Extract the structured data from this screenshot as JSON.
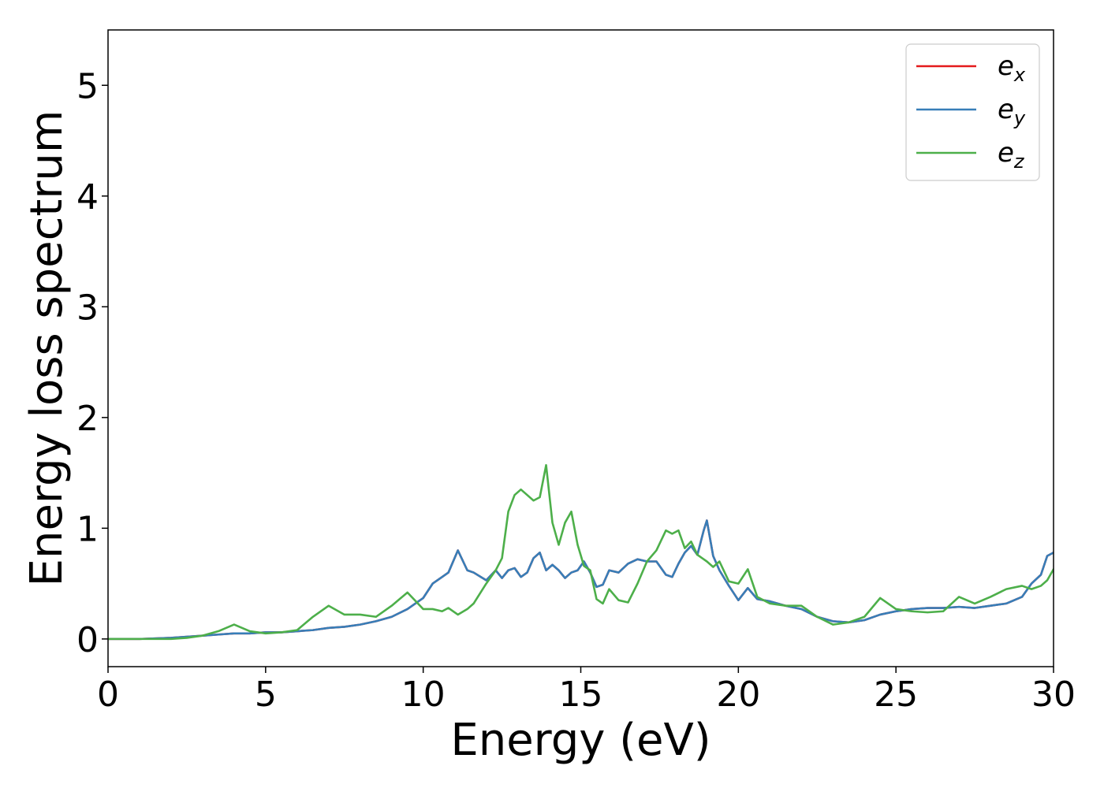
{
  "chart_data": {
    "type": "line",
    "title": "",
    "xlabel": "Energy (eV)",
    "ylabel": "Energy loss spectrum",
    "xlim": [
      0,
      30
    ],
    "ylim": [
      -0.25,
      5.5
    ],
    "xticks": [
      0,
      5,
      10,
      15,
      20,
      25,
      30
    ],
    "yticks": [
      0,
      1,
      2,
      3,
      4,
      5
    ],
    "grid": false,
    "legend": {
      "position": "top-right",
      "entries": [
        {
          "base": "e",
          "sub": "x",
          "color": "#e41a1c"
        },
        {
          "base": "e",
          "sub": "y",
          "color": "#377eb8"
        },
        {
          "base": "e",
          "sub": "z",
          "color": "#4daf4a"
        }
      ]
    },
    "x": [
      0,
      1,
      2,
      2.5,
      3,
      3.5,
      4,
      4.5,
      5,
      5.5,
      6,
      6.5,
      7,
      7.5,
      8,
      8.5,
      9,
      9.5,
      10,
      10.3,
      10.6,
      10.8,
      11.1,
      11.4,
      11.6,
      12,
      12.3,
      12.5,
      12.7,
      12.9,
      13.1,
      13.3,
      13.5,
      13.7,
      13.9,
      14.1,
      14.3,
      14.5,
      14.7,
      14.9,
      15.1,
      15.3,
      15.5,
      15.7,
      15.9,
      16.2,
      16.5,
      16.8,
      17.1,
      17.4,
      17.7,
      17.9,
      18.1,
      18.3,
      18.5,
      18.7,
      18.9,
      19.0,
      19.2,
      19.4,
      19.7,
      20,
      20.3,
      20.6,
      21,
      21.5,
      22,
      22.5,
      23,
      23.5,
      24,
      24.5,
      25,
      25.5,
      26,
      26.5,
      27,
      27.5,
      28,
      28.5,
      29,
      29.3,
      29.6,
      29.8,
      30
    ],
    "series": [
      {
        "name": "e_x",
        "color": "#e41a1c",
        "values": [
          0,
          0,
          0.01,
          0.02,
          0.03,
          0.04,
          0.05,
          0.05,
          0.06,
          0.06,
          0.07,
          0.08,
          0.1,
          0.11,
          0.13,
          0.16,
          0.2,
          0.27,
          0.37,
          0.5,
          0.56,
          0.6,
          0.8,
          0.62,
          0.6,
          0.53,
          0.62,
          0.55,
          0.62,
          0.64,
          0.56,
          0.6,
          0.73,
          0.78,
          0.62,
          0.67,
          0.62,
          0.55,
          0.6,
          0.62,
          0.7,
          0.6,
          0.47,
          0.49,
          0.62,
          0.6,
          0.68,
          0.72,
          0.7,
          0.7,
          0.58,
          0.56,
          0.68,
          0.78,
          0.84,
          0.76,
          0.98,
          1.07,
          0.75,
          0.62,
          0.48,
          0.35,
          0.46,
          0.36,
          0.34,
          0.3,
          0.27,
          0.2,
          0.16,
          0.15,
          0.17,
          0.22,
          0.25,
          0.27,
          0.28,
          0.28,
          0.29,
          0.28,
          0.3,
          0.32,
          0.38,
          0.5,
          0.58,
          0.75,
          0.78
        ]
      },
      {
        "name": "e_y",
        "color": "#377eb8",
        "values": [
          0,
          0,
          0.01,
          0.02,
          0.03,
          0.04,
          0.05,
          0.05,
          0.06,
          0.06,
          0.07,
          0.08,
          0.1,
          0.11,
          0.13,
          0.16,
          0.2,
          0.27,
          0.37,
          0.5,
          0.56,
          0.6,
          0.8,
          0.62,
          0.6,
          0.53,
          0.62,
          0.55,
          0.62,
          0.64,
          0.56,
          0.6,
          0.73,
          0.78,
          0.62,
          0.67,
          0.62,
          0.55,
          0.6,
          0.62,
          0.7,
          0.6,
          0.47,
          0.49,
          0.62,
          0.6,
          0.68,
          0.72,
          0.7,
          0.7,
          0.58,
          0.56,
          0.68,
          0.78,
          0.84,
          0.76,
          0.98,
          1.07,
          0.75,
          0.62,
          0.48,
          0.35,
          0.46,
          0.36,
          0.34,
          0.3,
          0.27,
          0.2,
          0.16,
          0.15,
          0.17,
          0.22,
          0.25,
          0.27,
          0.28,
          0.28,
          0.29,
          0.28,
          0.3,
          0.32,
          0.38,
          0.5,
          0.58,
          0.75,
          0.78
        ]
      },
      {
        "name": "e_z",
        "color": "#4daf4a",
        "values": [
          0,
          0,
          0,
          0.01,
          0.03,
          0.07,
          0.13,
          0.07,
          0.05,
          0.06,
          0.08,
          0.2,
          0.3,
          0.22,
          0.22,
          0.2,
          0.3,
          0.42,
          0.27,
          0.27,
          0.25,
          0.28,
          0.22,
          0.27,
          0.32,
          0.5,
          0.62,
          0.73,
          1.15,
          1.3,
          1.35,
          1.3,
          1.25,
          1.28,
          1.57,
          1.05,
          0.85,
          1.05,
          1.15,
          0.85,
          0.66,
          0.62,
          0.36,
          0.32,
          0.45,
          0.35,
          0.33,
          0.5,
          0.7,
          0.8,
          0.98,
          0.95,
          0.98,
          0.82,
          0.88,
          0.76,
          0.72,
          0.7,
          0.65,
          0.7,
          0.52,
          0.5,
          0.63,
          0.38,
          0.32,
          0.3,
          0.3,
          0.2,
          0.13,
          0.15,
          0.2,
          0.37,
          0.27,
          0.25,
          0.24,
          0.25,
          0.38,
          0.32,
          0.38,
          0.45,
          0.48,
          0.45,
          0.48,
          0.53,
          0.63
        ]
      }
    ]
  }
}
